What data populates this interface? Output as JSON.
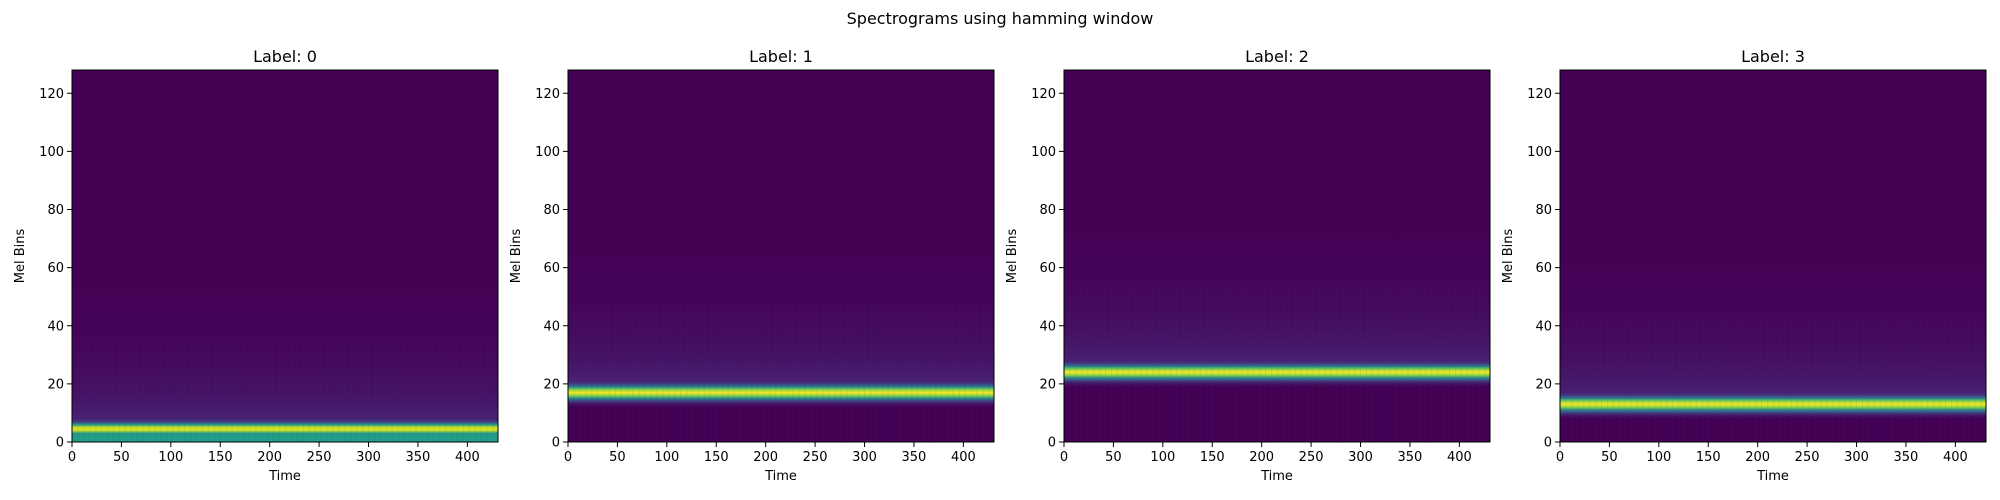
{
  "figure": {
    "suptitle": "Spectrograms using hamming window"
  },
  "chart_data": [
    {
      "type": "heatmap",
      "title": "Label: 0",
      "xlabel": "Time",
      "ylabel": "Mel Bins",
      "xlim": [
        0,
        431
      ],
      "ylim": [
        0,
        128
      ],
      "x_ticks": [
        0,
        50,
        100,
        150,
        200,
        250,
        300,
        350,
        400
      ],
      "y_ticks": [
        0,
        20,
        40,
        60,
        80,
        100,
        120
      ],
      "colormap": "viridis",
      "background_color": "#440154",
      "band": {
        "center_bin": 4.5,
        "half_width_bins": 2.5,
        "secondary_bins": [
          1
        ]
      },
      "grid": false
    },
    {
      "type": "heatmap",
      "title": "Label: 1",
      "xlabel": "Time",
      "ylabel": "Mel Bins",
      "xlim": [
        0,
        431
      ],
      "ylim": [
        0,
        128
      ],
      "x_ticks": [
        0,
        50,
        100,
        150,
        200,
        250,
        300,
        350,
        400
      ],
      "y_ticks": [
        0,
        20,
        40,
        60,
        80,
        100,
        120
      ],
      "colormap": "viridis",
      "background_color": "#440154",
      "band": {
        "center_bin": 17,
        "half_width_bins": 3,
        "secondary_bins": []
      },
      "grid": false
    },
    {
      "type": "heatmap",
      "title": "Label: 2",
      "xlabel": "Time",
      "ylabel": "Mel Bins",
      "xlim": [
        0,
        431
      ],
      "ylim": [
        0,
        128
      ],
      "x_ticks": [
        0,
        50,
        100,
        150,
        200,
        250,
        300,
        350,
        400
      ],
      "y_ticks": [
        0,
        20,
        40,
        60,
        80,
        100,
        120
      ],
      "colormap": "viridis",
      "background_color": "#440154",
      "band": {
        "center_bin": 24,
        "half_width_bins": 3,
        "secondary_bins": []
      },
      "grid": false
    },
    {
      "type": "heatmap",
      "title": "Label: 3",
      "xlabel": "Time",
      "ylabel": "Mel Bins",
      "xlim": [
        0,
        431
      ],
      "ylim": [
        0,
        128
      ],
      "x_ticks": [
        0,
        50,
        100,
        150,
        200,
        250,
        300,
        350,
        400
      ],
      "y_ticks": [
        0,
        20,
        40,
        60,
        80,
        100,
        120
      ],
      "colormap": "viridis",
      "background_color": "#440154",
      "band": {
        "center_bin": 13,
        "half_width_bins": 3,
        "secondary_bins": []
      },
      "grid": false
    }
  ]
}
